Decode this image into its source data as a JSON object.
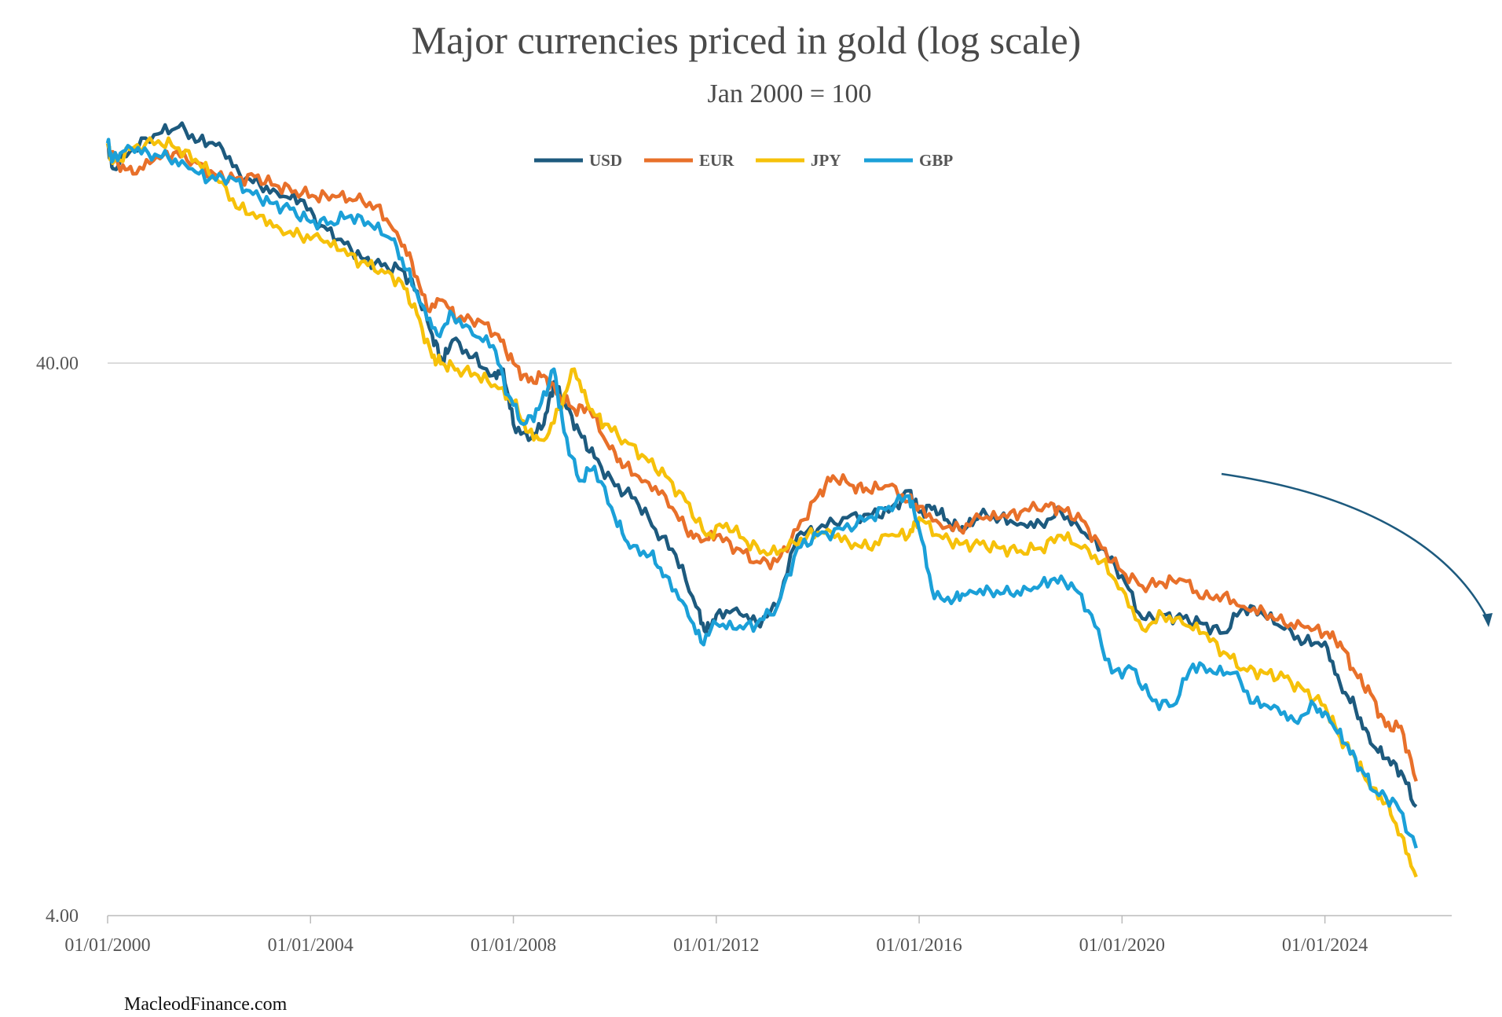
{
  "page": {
    "source_label": "MacleodFinance.com"
  },
  "chart_data": {
    "type": "line",
    "title": "Major currencies priced in gold (log scale)",
    "subtitle": "Jan 2000 = 100",
    "yscale": "log",
    "ylim": [
      4,
      110
    ],
    "yticks": [
      {
        "value": 40,
        "label": "40.00"
      },
      {
        "value": 4,
        "label": "4.00"
      }
    ],
    "xlim": [
      2000.0,
      2025.8
    ],
    "xticks": [
      {
        "value": 2000,
        "label": "01/01/2000"
      },
      {
        "value": 2004,
        "label": "01/01/2004"
      },
      {
        "value": 2008,
        "label": "01/01/2008"
      },
      {
        "value": 2012,
        "label": "01/01/2012"
      },
      {
        "value": 2016,
        "label": "01/01/2016"
      },
      {
        "value": 2020,
        "label": "01/01/2020"
      },
      {
        "value": 2024,
        "label": "01/01/2024"
      }
    ],
    "legend_position": "top-center",
    "annotation": "curved downward arrow near right end",
    "series": [
      {
        "name": "USD",
        "color": "#1d5a7e",
        "points": [
          [
            2000.0,
            100
          ],
          [
            2000.1,
            90
          ],
          [
            2000.5,
            98
          ],
          [
            2001.0,
            104
          ],
          [
            2001.4,
            107
          ],
          [
            2001.8,
            101
          ],
          [
            2002.2,
            100
          ],
          [
            2002.6,
            88
          ],
          [
            2003.0,
            84
          ],
          [
            2003.4,
            80
          ],
          [
            2003.8,
            79
          ],
          [
            2004.2,
            71
          ],
          [
            2004.6,
            67
          ],
          [
            2005.0,
            62
          ],
          [
            2005.4,
            60
          ],
          [
            2005.8,
            59
          ],
          [
            2006.1,
            54
          ],
          [
            2006.4,
            45
          ],
          [
            2006.6,
            40
          ],
          [
            2006.8,
            44
          ],
          [
            2007.2,
            41
          ],
          [
            2007.6,
            38
          ],
          [
            2007.8,
            39
          ],
          [
            2008.0,
            31
          ],
          [
            2008.3,
            29
          ],
          [
            2008.6,
            31
          ],
          [
            2008.8,
            37
          ],
          [
            2009.0,
            34
          ],
          [
            2009.3,
            30
          ],
          [
            2009.6,
            27
          ],
          [
            2010.0,
            24
          ],
          [
            2010.4,
            22.8
          ],
          [
            2010.8,
            20
          ],
          [
            2011.2,
            18
          ],
          [
            2011.6,
            14.5
          ],
          [
            2011.8,
            13.0
          ],
          [
            2012.0,
            14.0
          ],
          [
            2012.4,
            14.4
          ],
          [
            2012.8,
            13.5
          ],
          [
            2013.2,
            14.5
          ],
          [
            2013.6,
            19.5
          ],
          [
            2014.0,
            20
          ],
          [
            2014.5,
            21
          ],
          [
            2015.0,
            21.3
          ],
          [
            2015.4,
            21.5
          ],
          [
            2015.8,
            23.5
          ],
          [
            2016.0,
            21.5
          ],
          [
            2016.3,
            22
          ],
          [
            2016.6,
            20.5
          ],
          [
            2016.9,
            20
          ],
          [
            2017.2,
            21.2
          ],
          [
            2017.6,
            21
          ],
          [
            2018.0,
            20.5
          ],
          [
            2018.4,
            20.5
          ],
          [
            2018.8,
            21.5
          ],
          [
            2019.2,
            19.8
          ],
          [
            2019.6,
            18.5
          ],
          [
            2020.0,
            16.5
          ],
          [
            2020.4,
            13.8
          ],
          [
            2020.8,
            14
          ],
          [
            2021.2,
            13.8
          ],
          [
            2021.6,
            13.5
          ],
          [
            2022.0,
            13.0
          ],
          [
            2022.4,
            14.5
          ],
          [
            2022.8,
            14
          ],
          [
            2023.2,
            13.2
          ],
          [
            2023.6,
            12.5
          ],
          [
            2024.0,
            12.5
          ],
          [
            2024.3,
            10.5
          ],
          [
            2024.6,
            9.5
          ],
          [
            2024.9,
            8.2
          ],
          [
            2025.2,
            7.7
          ],
          [
            2025.5,
            7.3
          ],
          [
            2025.8,
            6.3
          ]
        ]
      },
      {
        "name": "EUR",
        "color": "#e8702a",
        "points": [
          [
            2000.0,
            100
          ],
          [
            2000.2,
            92
          ],
          [
            2000.5,
            88
          ],
          [
            2000.9,
            93
          ],
          [
            2001.3,
            96
          ],
          [
            2001.7,
            93
          ],
          [
            2002.1,
            88
          ],
          [
            2002.5,
            86
          ],
          [
            2002.9,
            87
          ],
          [
            2003.3,
            84
          ],
          [
            2003.7,
            82
          ],
          [
            2004.1,
            80
          ],
          [
            2004.5,
            80
          ],
          [
            2004.9,
            79
          ],
          [
            2005.3,
            77
          ],
          [
            2005.7,
            69
          ],
          [
            2006.0,
            61
          ],
          [
            2006.3,
            50
          ],
          [
            2006.6,
            52
          ],
          [
            2006.9,
            48
          ],
          [
            2007.3,
            48
          ],
          [
            2007.7,
            45
          ],
          [
            2008.0,
            40
          ],
          [
            2008.3,
            37
          ],
          [
            2008.6,
            38
          ],
          [
            2008.9,
            35
          ],
          [
            2009.2,
            33
          ],
          [
            2009.5,
            33
          ],
          [
            2009.9,
            28
          ],
          [
            2010.2,
            26
          ],
          [
            2010.6,
            24.5
          ],
          [
            2011.0,
            23
          ],
          [
            2011.4,
            20
          ],
          [
            2011.7,
            19
          ],
          [
            2012.0,
            19.5
          ],
          [
            2012.4,
            18.5
          ],
          [
            2012.8,
            17.5
          ],
          [
            2013.2,
            17.5
          ],
          [
            2013.6,
            20
          ],
          [
            2014.0,
            23
          ],
          [
            2014.3,
            25
          ],
          [
            2014.7,
            24
          ],
          [
            2015.0,
            23.5
          ],
          [
            2015.4,
            24
          ],
          [
            2015.8,
            22.5
          ],
          [
            2016.0,
            22
          ],
          [
            2016.4,
            20.5
          ],
          [
            2016.8,
            20
          ],
          [
            2017.2,
            21
          ],
          [
            2017.6,
            21
          ],
          [
            2018.0,
            21.5
          ],
          [
            2018.5,
            22.2
          ],
          [
            2018.8,
            21.8
          ],
          [
            2019.2,
            20.8
          ],
          [
            2019.6,
            18.5
          ],
          [
            2020.0,
            16.8
          ],
          [
            2020.4,
            15.8
          ],
          [
            2020.8,
            16
          ],
          [
            2021.2,
            16.2
          ],
          [
            2021.6,
            15
          ],
          [
            2022.0,
            15.2
          ],
          [
            2022.4,
            14.5
          ],
          [
            2022.8,
            14.2
          ],
          [
            2023.2,
            13.5
          ],
          [
            2023.6,
            13.3
          ],
          [
            2024.0,
            13
          ],
          [
            2024.3,
            12.5
          ],
          [
            2024.6,
            11.0
          ],
          [
            2024.9,
            10.1
          ],
          [
            2025.2,
            8.8
          ],
          [
            2025.5,
            8.8
          ],
          [
            2025.8,
            7.0
          ]
        ]
      },
      {
        "name": "JPY",
        "color": "#f6c10a",
        "points": [
          [
            2000.0,
            100
          ],
          [
            2000.1,
            92
          ],
          [
            2000.5,
            98
          ],
          [
            2001.0,
            101
          ],
          [
            2001.4,
            98
          ],
          [
            2001.8,
            92
          ],
          [
            2002.2,
            85
          ],
          [
            2002.6,
            76
          ],
          [
            2003.0,
            74
          ],
          [
            2003.4,
            70
          ],
          [
            2003.8,
            68
          ],
          [
            2004.2,
            67
          ],
          [
            2004.6,
            64
          ],
          [
            2005.0,
            61
          ],
          [
            2005.4,
            59
          ],
          [
            2005.8,
            56
          ],
          [
            2006.1,
            49
          ],
          [
            2006.4,
            41
          ],
          [
            2006.6,
            40
          ],
          [
            2006.9,
            39
          ],
          [
            2007.3,
            38
          ],
          [
            2007.7,
            36
          ],
          [
            2008.0,
            34
          ],
          [
            2008.3,
            30
          ],
          [
            2008.6,
            29
          ],
          [
            2008.9,
            33
          ],
          [
            2009.2,
            39
          ],
          [
            2009.5,
            33
          ],
          [
            2009.8,
            31
          ],
          [
            2010.2,
            29
          ],
          [
            2010.6,
            27
          ],
          [
            2011.0,
            25
          ],
          [
            2011.4,
            22.5
          ],
          [
            2011.8,
            19.5
          ],
          [
            2012.2,
            20.5
          ],
          [
            2012.6,
            19
          ],
          [
            2013.0,
            18
          ],
          [
            2013.4,
            18.5
          ],
          [
            2013.8,
            19.5
          ],
          [
            2014.2,
            20
          ],
          [
            2014.6,
            19
          ],
          [
            2015.0,
            18.5
          ],
          [
            2015.4,
            19.5
          ],
          [
            2015.8,
            19.5
          ],
          [
            2016.0,
            21
          ],
          [
            2016.4,
            19.5
          ],
          [
            2016.8,
            18.8
          ],
          [
            2017.2,
            18.8
          ],
          [
            2017.6,
            18.5
          ],
          [
            2018.0,
            18.3
          ],
          [
            2018.4,
            18.5
          ],
          [
            2018.8,
            19.5
          ],
          [
            2019.2,
            18.5
          ],
          [
            2019.6,
            17.5
          ],
          [
            2020.0,
            15.6
          ],
          [
            2020.4,
            13.2
          ],
          [
            2020.8,
            14
          ],
          [
            2021.2,
            13.5
          ],
          [
            2021.6,
            13
          ],
          [
            2022.0,
            12
          ],
          [
            2022.4,
            11.2
          ],
          [
            2022.8,
            11
          ],
          [
            2023.2,
            10.8
          ],
          [
            2023.6,
            10.2
          ],
          [
            2024.0,
            9.6
          ],
          [
            2024.3,
            8.4
          ],
          [
            2024.6,
            7.7
          ],
          [
            2024.9,
            6.8
          ],
          [
            2025.2,
            6.4
          ],
          [
            2025.5,
            5.6
          ],
          [
            2025.8,
            4.7
          ]
        ]
      },
      {
        "name": "GBP",
        "color": "#1ba0d8",
        "points": [
          [
            2000.0,
            100
          ],
          [
            2000.1,
            93
          ],
          [
            2000.4,
            99
          ],
          [
            2000.8,
            96
          ],
          [
            2001.2,
            94
          ],
          [
            2001.6,
            90
          ],
          [
            2002.0,
            86
          ],
          [
            2002.4,
            87
          ],
          [
            2002.8,
            82
          ],
          [
            2003.2,
            78
          ],
          [
            2003.6,
            76
          ],
          [
            2004.0,
            72
          ],
          [
            2004.4,
            72
          ],
          [
            2004.8,
            74
          ],
          [
            2005.2,
            71
          ],
          [
            2005.6,
            67
          ],
          [
            2005.9,
            59
          ],
          [
            2006.2,
            51
          ],
          [
            2006.5,
            45
          ],
          [
            2006.8,
            49
          ],
          [
            2007.2,
            45
          ],
          [
            2007.6,
            43
          ],
          [
            2007.9,
            35
          ],
          [
            2008.2,
            31
          ],
          [
            2008.5,
            33
          ],
          [
            2008.8,
            39
          ],
          [
            2009.0,
            30
          ],
          [
            2009.3,
            24.5
          ],
          [
            2009.6,
            26
          ],
          [
            2010.0,
            21
          ],
          [
            2010.3,
            18.5
          ],
          [
            2010.7,
            18
          ],
          [
            2011.0,
            16.5
          ],
          [
            2011.4,
            14.5
          ],
          [
            2011.7,
            12.5
          ],
          [
            2012.0,
            13.5
          ],
          [
            2012.4,
            13.2
          ],
          [
            2012.8,
            13.5
          ],
          [
            2013.2,
            14.5
          ],
          [
            2013.6,
            18.5
          ],
          [
            2014.0,
            19.5
          ],
          [
            2014.5,
            20
          ],
          [
            2015.0,
            21
          ],
          [
            2015.4,
            22
          ],
          [
            2015.8,
            23
          ],
          [
            2016.0,
            20
          ],
          [
            2016.3,
            15
          ],
          [
            2016.7,
            15
          ],
          [
            2017.0,
            15.5
          ],
          [
            2017.4,
            15.5
          ],
          [
            2017.8,
            15.3
          ],
          [
            2018.2,
            15.5
          ],
          [
            2018.6,
            16.2
          ],
          [
            2019.0,
            16
          ],
          [
            2019.4,
            14
          ],
          [
            2019.8,
            11
          ],
          [
            2020.2,
            11.2
          ],
          [
            2020.6,
            9.8
          ],
          [
            2021.0,
            9.6
          ],
          [
            2021.4,
            11.4
          ],
          [
            2021.8,
            11.0
          ],
          [
            2022.2,
            11
          ],
          [
            2022.6,
            9.7
          ],
          [
            2023.0,
            9.6
          ],
          [
            2023.4,
            9.0
          ],
          [
            2023.8,
            9.6
          ],
          [
            2024.1,
            9.0
          ],
          [
            2024.4,
            8.2
          ],
          [
            2024.7,
            7.4
          ],
          [
            2025.0,
            6.7
          ],
          [
            2025.4,
            6.4
          ],
          [
            2025.8,
            5.3
          ]
        ]
      }
    ]
  }
}
